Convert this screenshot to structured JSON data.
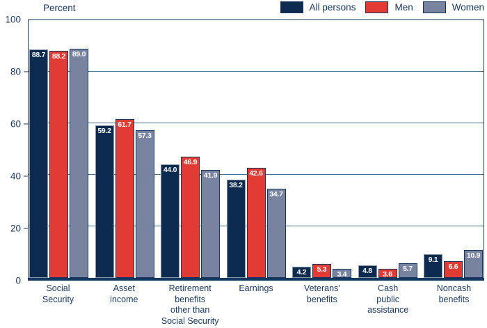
{
  "chart_data": {
    "type": "bar",
    "title": "",
    "xlabel": "",
    "ylabel": "Percent",
    "ylim": [
      0,
      100
    ],
    "yticks": [
      0,
      20,
      40,
      60,
      80,
      100
    ],
    "grid": true,
    "legend_position": "top-right",
    "categories": [
      "Social\nSecurity",
      "Asset\nincome",
      "Retirement\nbenefits\nother than\nSocial Security",
      "Earnings",
      "Veterans'\nbenefits",
      "Cash\npublic\nassistance",
      "Noncash\nbenefits"
    ],
    "series": [
      {
        "name": "All persons",
        "color": "#0d2a50",
        "border_color": "#8d96a5",
        "values": [
          88.7,
          59.2,
          44.0,
          38.2,
          4.2,
          4.8,
          9.1
        ]
      },
      {
        "name": "Men",
        "color": "#e23b33",
        "border_color": "#16365f",
        "values": [
          88.2,
          61.7,
          46.9,
          42.6,
          5.3,
          3.6,
          6.6
        ]
      },
      {
        "name": "Women",
        "color": "#78839f",
        "border_color": "#16365f",
        "values": [
          89.0,
          57.3,
          41.9,
          34.7,
          3.4,
          5.7,
          10.9
        ]
      }
    ],
    "colors": {
      "axis": "#16365f",
      "gridline": "#4a6e88",
      "text": "#16365f",
      "value_label": "#ffffff"
    }
  }
}
